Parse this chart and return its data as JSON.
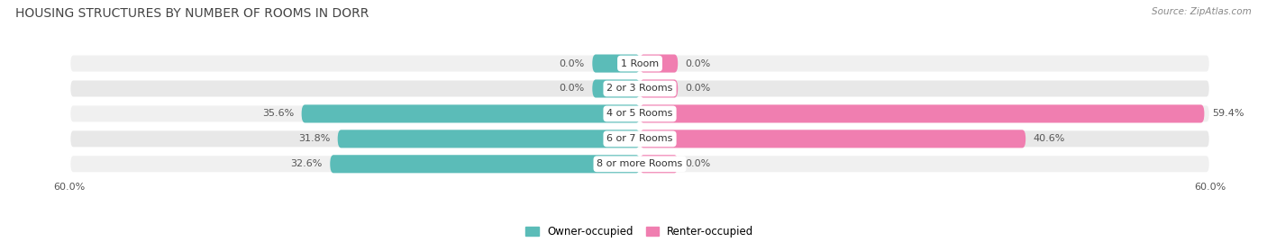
{
  "title": "HOUSING STRUCTURES BY NUMBER OF ROOMS IN DORR",
  "source": "Source: ZipAtlas.com",
  "categories": [
    "1 Room",
    "2 or 3 Rooms",
    "4 or 5 Rooms",
    "6 or 7 Rooms",
    "8 or more Rooms"
  ],
  "owner_values": [
    0.0,
    0.0,
    35.6,
    31.8,
    32.6
  ],
  "renter_values": [
    0.0,
    0.0,
    59.4,
    40.6,
    0.0
  ],
  "owner_color": "#5bbcb8",
  "renter_color": "#f07eb0",
  "row_bg_color_odd": "#f0f0f0",
  "row_bg_color_even": "#e8e8e8",
  "axis_max": 60.0,
  "legend_owner": "Owner-occupied",
  "legend_renter": "Renter-occupied",
  "title_fontsize": 10,
  "label_fontsize": 8,
  "category_fontsize": 8,
  "axis_label_fontsize": 8,
  "zero_bar_size": 5.0,
  "small_renter_bar": 4.0
}
